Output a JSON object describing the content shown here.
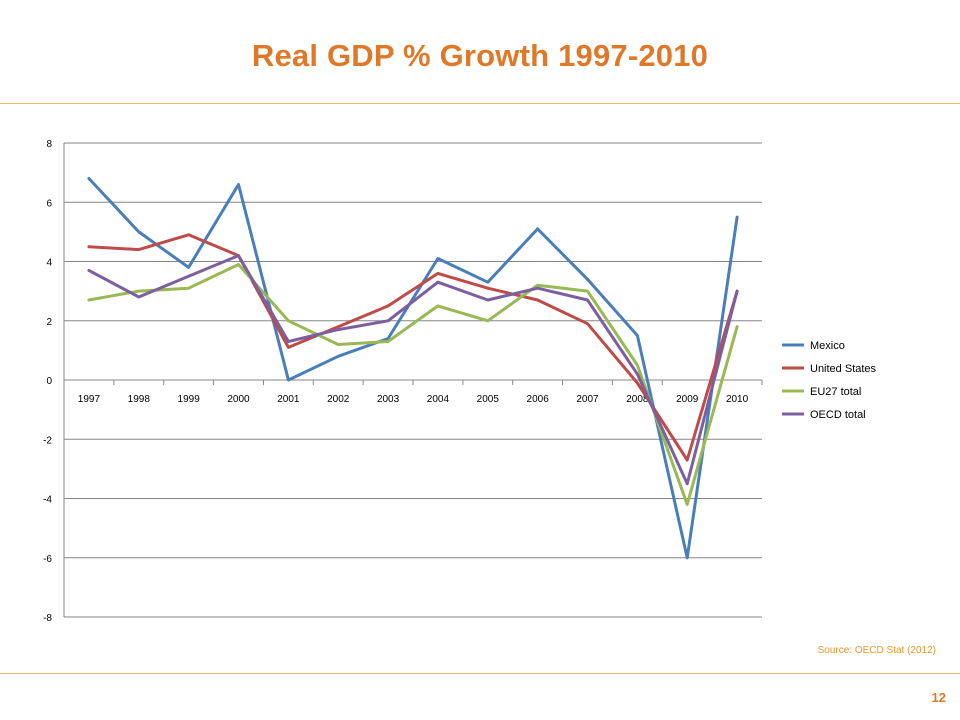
{
  "slide": {
    "title": "Real GDP % Growth 1997-2010",
    "source": "Source: OECD Stat (2012)",
    "page_number": "12"
  },
  "colors": {
    "title": "#e0782a",
    "rule": "#e9b86e",
    "grid": "#868686"
  },
  "chart_data": {
    "type": "line",
    "title": "",
    "xlabel": "",
    "ylabel": "",
    "categories": [
      "1997",
      "1998",
      "1999",
      "2000",
      "2001",
      "2002",
      "2003",
      "2004",
      "2005",
      "2006",
      "2007",
      "2008",
      "2009",
      "2010"
    ],
    "ylim": [
      -8,
      8
    ],
    "yticks": [
      8,
      6,
      4,
      2,
      0,
      -2,
      -4,
      -6,
      -8
    ],
    "grid": true,
    "legend_position": "right",
    "series": [
      {
        "name": "Mexico",
        "color": "#4a7ebb",
        "values": [
          6.8,
          5.0,
          3.8,
          6.6,
          0.0,
          0.8,
          1.4,
          4.1,
          3.3,
          5.1,
          3.4,
          1.5,
          -6.0,
          5.5
        ]
      },
      {
        "name": "United States",
        "color": "#be4b48",
        "values": [
          4.5,
          4.4,
          4.9,
          4.2,
          1.1,
          1.8,
          2.5,
          3.6,
          3.1,
          2.7,
          1.9,
          -0.1,
          -2.7,
          3.0
        ]
      },
      {
        "name": "EU27 total",
        "color": "#98b954",
        "values": [
          2.7,
          3.0,
          3.1,
          3.9,
          2.0,
          1.2,
          1.3,
          2.5,
          2.0,
          3.2,
          3.0,
          0.5,
          -4.2,
          1.8
        ]
      },
      {
        "name": "OECD total",
        "color": "#7d5fa0",
        "values": [
          3.7,
          2.8,
          3.5,
          4.2,
          1.3,
          1.7,
          2.0,
          3.3,
          2.7,
          3.1,
          2.7,
          0.2,
          -3.5,
          3.0
        ]
      }
    ]
  }
}
